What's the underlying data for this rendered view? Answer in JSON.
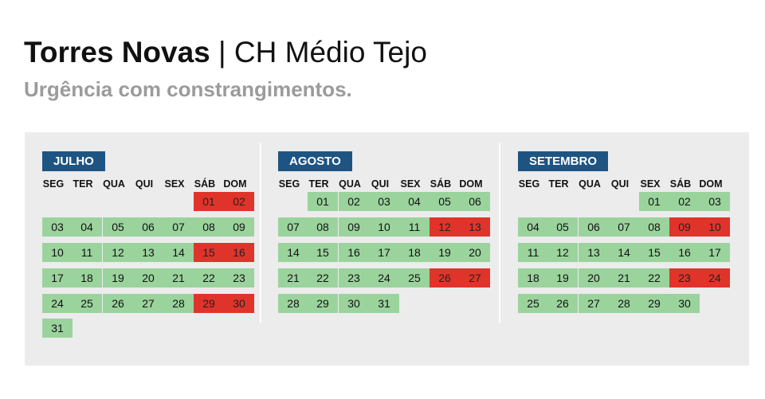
{
  "header": {
    "title_bold": "Torres Novas",
    "title_rest": " | CH Médio Tejo",
    "subtitle": "Urgência com constrangimentos."
  },
  "colors": {
    "normal_day": "#9bd39d",
    "constrained_day": "#e0342b",
    "month_label_bg": "#1e5482",
    "panel_bg": "#ececec"
  },
  "weekdays": [
    "SEG",
    "TER",
    "QUA",
    "QUI",
    "SEX",
    "SÁB",
    "DOM"
  ],
  "months": [
    {
      "name": "JULHO",
      "start_weekday": 5,
      "days": [
        "01",
        "02",
        "03",
        "04",
        "05",
        "06",
        "07",
        "08",
        "09",
        "10",
        "11",
        "12",
        "13",
        "14",
        "15",
        "16",
        "17",
        "18",
        "19",
        "20",
        "21",
        "22",
        "23",
        "24",
        "25",
        "26",
        "27",
        "28",
        "29",
        "30",
        "31"
      ],
      "constrained": [
        "01",
        "02",
        "15",
        "16",
        "29",
        "30"
      ]
    },
    {
      "name": "AGOSTO",
      "start_weekday": 1,
      "days": [
        "01",
        "02",
        "03",
        "04",
        "05",
        "06",
        "07",
        "08",
        "09",
        "10",
        "11",
        "12",
        "13",
        "14",
        "15",
        "16",
        "17",
        "18",
        "19",
        "20",
        "21",
        "22",
        "23",
        "24",
        "25",
        "26",
        "27",
        "28",
        "29",
        "30",
        "31"
      ],
      "constrained": [
        "12",
        "13",
        "26",
        "27"
      ]
    },
    {
      "name": "SETEMBRO",
      "start_weekday": 4,
      "days": [
        "01",
        "02",
        "03",
        "04",
        "05",
        "06",
        "07",
        "08",
        "09",
        "10",
        "11",
        "12",
        "13",
        "14",
        "15",
        "16",
        "17",
        "18",
        "19",
        "20",
        "21",
        "22",
        "23",
        "24",
        "25",
        "26",
        "27",
        "28",
        "29",
        "30"
      ],
      "constrained": [
        "09",
        "10",
        "23",
        "24"
      ]
    }
  ]
}
